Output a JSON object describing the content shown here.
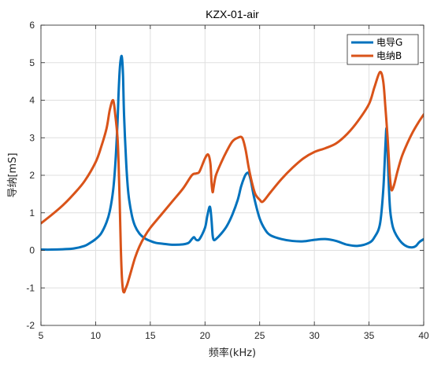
{
  "chart_data": {
    "type": "line",
    "title": "KZX-01-air",
    "xlabel": "频率(kHz)",
    "ylabel": "导纳[mS]",
    "xlim": [
      5,
      40
    ],
    "ylim": [
      -2,
      6
    ],
    "xticks": [
      5,
      10,
      15,
      20,
      25,
      30,
      35,
      40
    ],
    "yticks": [
      -2,
      -1,
      0,
      1,
      2,
      3,
      4,
      5,
      6
    ],
    "grid": true,
    "legend_position": "top-right",
    "series": [
      {
        "name": "电导G",
        "color": "#0072BD",
        "x": [
          5,
          6,
          7,
          8,
          9,
          9.5,
          10,
          10.5,
          11,
          11.3,
          11.6,
          11.8,
          12.0,
          12.1,
          12.2,
          12.3,
          12.4,
          12.5,
          12.6,
          12.8,
          13.0,
          13.3,
          13.6,
          14.0,
          14.5,
          15.0,
          15.5,
          16,
          17,
          18,
          18.5,
          18.8,
          19.0,
          19.2,
          19.5,
          20.0,
          20.2,
          20.4,
          20.5,
          20.6,
          20.7,
          20.8,
          21.0,
          21.5,
          22,
          22.5,
          23.0,
          23.3,
          23.6,
          23.8,
          24.0,
          24.2,
          24.5,
          25.0,
          25.5,
          26,
          27,
          28,
          29,
          30,
          31,
          32,
          33,
          34,
          35,
          35.5,
          36.0,
          36.3,
          36.5,
          36.6,
          36.7,
          36.8,
          36.9,
          37.0,
          37.2,
          37.5,
          38,
          38.5,
          39,
          39.3,
          39.6,
          40
        ],
        "values": [
          0.02,
          0.02,
          0.03,
          0.05,
          0.12,
          0.2,
          0.3,
          0.45,
          0.75,
          1.05,
          1.6,
          2.3,
          3.4,
          4.2,
          4.8,
          5.1,
          5.15,
          4.7,
          3.6,
          2.3,
          1.5,
          0.95,
          0.65,
          0.45,
          0.32,
          0.25,
          0.2,
          0.18,
          0.15,
          0.16,
          0.2,
          0.3,
          0.35,
          0.28,
          0.3,
          0.6,
          0.9,
          1.15,
          1.1,
          0.8,
          0.4,
          0.28,
          0.3,
          0.45,
          0.65,
          0.95,
          1.35,
          1.7,
          1.95,
          2.05,
          2.05,
          1.85,
          1.4,
          0.85,
          0.55,
          0.4,
          0.3,
          0.25,
          0.24,
          0.28,
          0.3,
          0.25,
          0.15,
          0.12,
          0.2,
          0.35,
          0.7,
          1.6,
          2.8,
          3.25,
          2.6,
          1.8,
          1.2,
          0.9,
          0.6,
          0.4,
          0.2,
          0.1,
          0.08,
          0.12,
          0.22,
          0.3
        ]
      },
      {
        "name": "电纳B",
        "color": "#D95319",
        "x": [
          5,
          6,
          7,
          8,
          9,
          10,
          10.5,
          11,
          11.3,
          11.6,
          11.8,
          12.0,
          12.1,
          12.2,
          12.3,
          12.4,
          12.5,
          12.6,
          12.7,
          12.9,
          13.2,
          13.6,
          14.0,
          14.5,
          15,
          16,
          17,
          18,
          18.8,
          19.2,
          19.5,
          20.0,
          20.3,
          20.5,
          20.6,
          20.7,
          20.8,
          21.0,
          21.5,
          22,
          22.5,
          23.0,
          23.4,
          23.7,
          24.0,
          24.3,
          24.6,
          25.0,
          25.3,
          26,
          27,
          28,
          29,
          30,
          31,
          32,
          33,
          34,
          35,
          35.5,
          36.0,
          36.3,
          36.5,
          36.7,
          36.8,
          36.9,
          37.0,
          37.1,
          37.3,
          37.6,
          38,
          38.5,
          39,
          39.5,
          40
        ],
        "values": [
          0.72,
          0.95,
          1.2,
          1.5,
          1.85,
          2.35,
          2.75,
          3.25,
          3.75,
          4.0,
          3.6,
          3.0,
          2.3,
          1.3,
          0.1,
          -0.7,
          -1.05,
          -1.12,
          -1.05,
          -0.9,
          -0.6,
          -0.2,
          0.1,
          0.38,
          0.6,
          0.95,
          1.3,
          1.65,
          2.0,
          2.05,
          2.1,
          2.45,
          2.55,
          2.3,
          1.8,
          1.55,
          1.7,
          2.0,
          2.35,
          2.65,
          2.9,
          3.0,
          3.0,
          2.7,
          2.2,
          1.8,
          1.5,
          1.35,
          1.3,
          1.55,
          1.9,
          2.2,
          2.45,
          2.62,
          2.72,
          2.85,
          3.1,
          3.45,
          3.9,
          4.35,
          4.75,
          4.5,
          3.8,
          3.0,
          2.5,
          2.0,
          1.7,
          1.6,
          1.75,
          2.1,
          2.5,
          2.85,
          3.15,
          3.4,
          3.62
        ]
      }
    ]
  }
}
